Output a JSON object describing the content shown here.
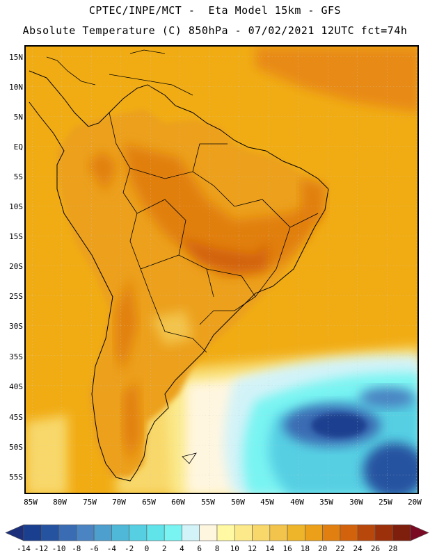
{
  "header": {
    "line1": "CPTEC/INPE/MCT -  Eta Model 15km - GFS",
    "line2": "Absolute Temperature (C) 850hPa - 07/02/2021 12UTC fct=74h"
  },
  "axes": {
    "lat_labels": [
      "15N",
      "10N",
      "5N",
      "EQ",
      "5S",
      "10S",
      "15S",
      "20S",
      "25S",
      "30S",
      "35S",
      "40S",
      "45S",
      "50S",
      "55S"
    ],
    "lon_labels": [
      "85W",
      "80W",
      "75W",
      "70W",
      "65W",
      "60W",
      "55W",
      "50W",
      "45W",
      "40W",
      "35W",
      "30W",
      "25W",
      "20W"
    ]
  },
  "colorbar": {
    "labels": [
      "-14",
      "-12",
      "-10",
      "-8",
      "-6",
      "-4",
      "-2",
      "0",
      "2",
      "4",
      "6",
      "8",
      "10",
      "12",
      "14",
      "16",
      "18",
      "20",
      "22",
      "24",
      "26",
      "28"
    ],
    "colors": [
      "#1a3f8f",
      "#2653a0",
      "#3a6cb3",
      "#4a84c2",
      "#4d9fcd",
      "#4fb8d8",
      "#56cfe3",
      "#61e3ea",
      "#79f4f2",
      "#d2f3f8",
      "#fff6e0",
      "#fff9a3",
      "#fbe98a",
      "#f8d86a",
      "#f3c44b",
      "#efb52a",
      "#eca01a",
      "#e17f10",
      "#d2620c",
      "#b8470c",
      "#9b300b",
      "#7e1f0e"
    ]
  },
  "map": {
    "ocean_color": "#f1ac14",
    "land_color": "#eca01a"
  }
}
